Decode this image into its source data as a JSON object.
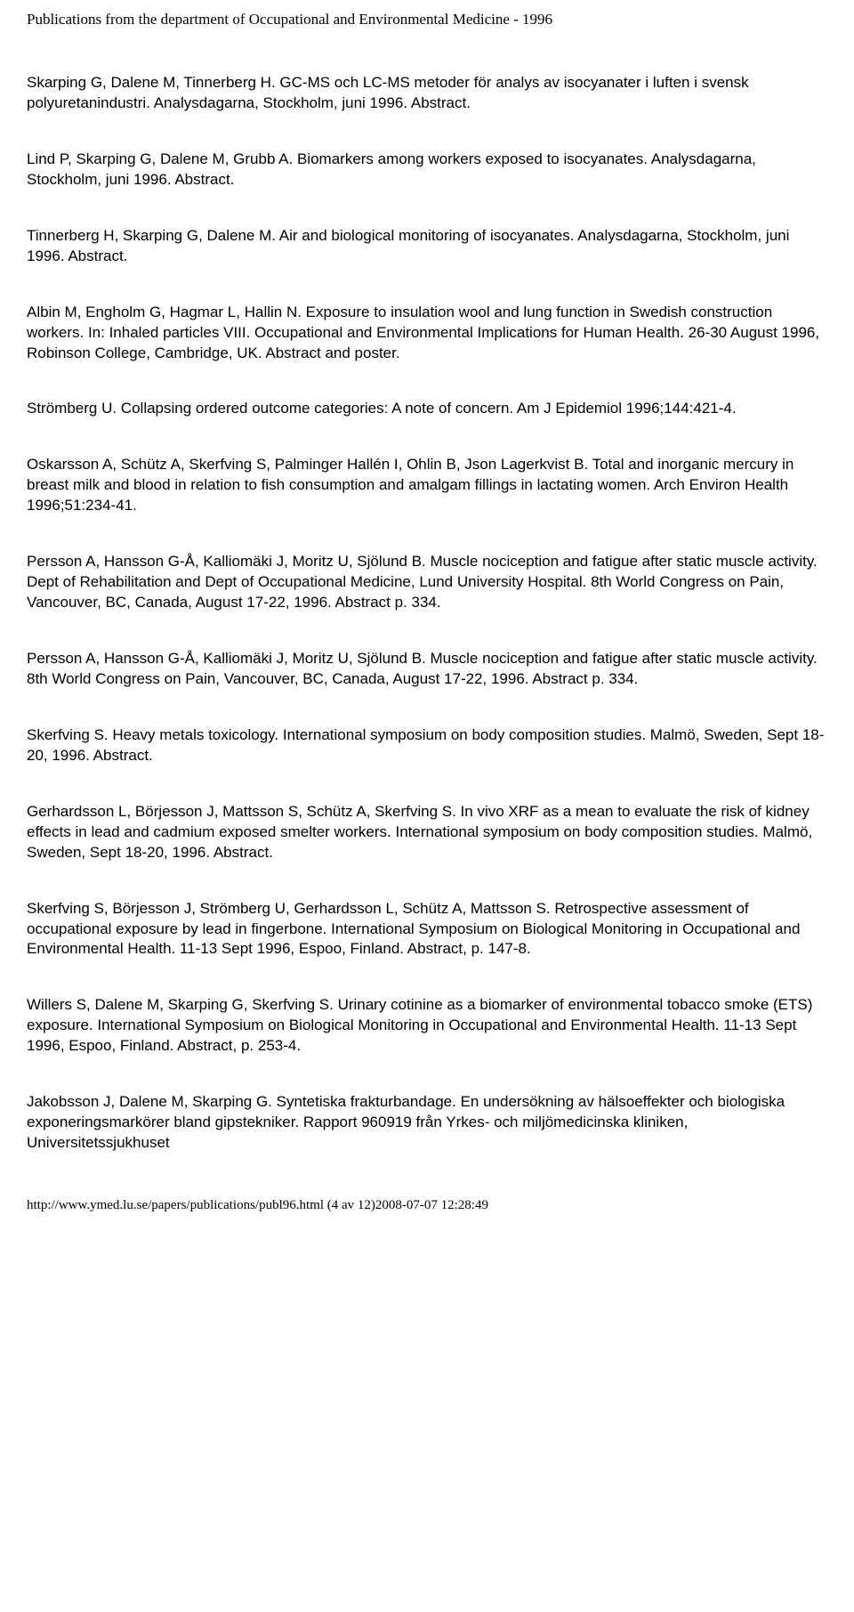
{
  "header": "Publications from the department of Occupational and Environmental Medicine - 1996",
  "publications": [
    "Skarping G, Dalene M, Tinnerberg H. GC-MS och LC-MS metoder för analys av isocyanater i luften i svensk polyuretanindustri. Analysdagarna, Stockholm, juni 1996. Abstract.",
    "Lind P, Skarping G, Dalene M, Grubb A. Biomarkers among workers exposed to isocyanates. Analysdagarna, Stockholm, juni 1996. Abstract.",
    "Tinnerberg H, Skarping G, Dalene M. Air and biological monitoring of isocyanates. Analysdagarna, Stockholm, juni 1996. Abstract.",
    "Albin M, Engholm G, Hagmar L, Hallin N. Exposure to insulation wool and lung function in Swedish construction workers. In: Inhaled particles VIII. Occupational and Environmental Implications for Human Health. 26-30 August 1996, Robinson College, Cambridge, UK. Abstract and poster.",
    "Strömberg U. Collapsing ordered outcome categories: A note of concern. Am J Epidemiol 1996;144:421-4.",
    "Oskarsson A, Schütz A, Skerfving S, Palminger Hallén I, Ohlin B, Json Lagerkvist B. Total and inorganic mercury in breast milk and blood in relation to fish consumption and amalgam fillings in lactating women. Arch Environ Health 1996;51:234-41.",
    "Persson A, Hansson G-Å, Kalliomäki J, Moritz U, Sjölund B. Muscle nociception and fatigue after static muscle activity. Dept of Rehabilitation and Dept of Occupational Medicine, Lund University Hospital. 8th World Congress on Pain, Vancouver, BC, Canada, August 17-22, 1996. Abstract p. 334.",
    "Persson A, Hansson G-Å, Kalliomäki J, Moritz U, Sjölund B. Muscle nociception and fatigue after static muscle activity. 8th World Congress on Pain, Vancouver, BC, Canada, August 17-22, 1996. Abstract p. 334.",
    "Skerfving S. Heavy metals toxicology. International symposium on body composition studies. Malmö, Sweden, Sept 18-20, 1996. Abstract.",
    "Gerhardsson L, Börjesson J, Mattsson S, Schütz A, Skerfving S. In vivo XRF as a mean to evaluate the risk of kidney effects in lead and cadmium exposed smelter workers. International symposium on body composition studies. Malmö, Sweden, Sept 18-20, 1996. Abstract.",
    "Skerfving S, Börjesson J, Strömberg U, Gerhardsson L, Schütz A, Mattsson S. Retrospective assessment of occupational exposure by lead in fingerbone. International Symposium on Biological Monitoring in Occupational and Environmental Health. 11-13 Sept 1996, Espoo, Finland. Abstract, p. 147-8.",
    "Willers S, Dalene M, Skarping G, Skerfving S. Urinary cotinine as a biomarker of environmental tobacco smoke (ETS) exposure. International Symposium on Biological Monitoring in Occupational and Environmental Health. 11-13 Sept 1996, Espoo, Finland. Abstract, p. 253-4.",
    "Jakobsson J, Dalene M, Skarping G. Syntetiska frakturbandage. En undersökning av hälsoeffekter och biologiska exponeringsmarkörer bland gipstekniker. Rapport 960919 från Yrkes- och miljömedicinska kliniken, Universitetssjukhuset"
  ],
  "footer": "http://www.ymed.lu.se/papers/publications/publ96.html (4 av 12)2008-07-07 12:28:49"
}
